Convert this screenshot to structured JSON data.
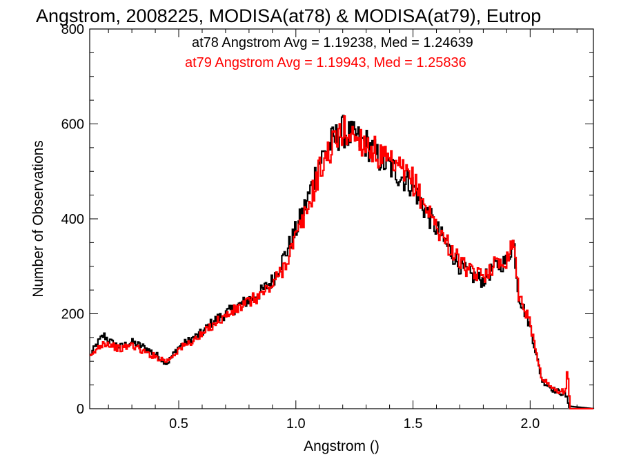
{
  "chart_data": {
    "type": "line",
    "title": "Angstrom, 2008225, MODISA(at78) & MODISA(at79), Eutrop",
    "xlabel": "Angstrom ()",
    "ylabel": "Number of Observations",
    "xlim": [
      0.12,
      2.27
    ],
    "ylim": [
      0,
      800
    ],
    "x_ticks": [
      0.5,
      1.0,
      1.5,
      2.0
    ],
    "x_tick_labels": [
      "0.5",
      "1.0",
      "1.5",
      "2.0"
    ],
    "y_ticks": [
      0,
      200,
      400,
      600,
      800
    ],
    "y_tick_labels": [
      "0",
      "200",
      "400",
      "600",
      "800"
    ],
    "grid": false,
    "legend": "top",
    "annotations": [
      {
        "text": "at78 Angstrom Avg = 1.19238, Med = 1.24639",
        "color": "#000000"
      },
      {
        "text": "at79 Angstrom Avg = 1.19943, Med = 1.25836",
        "color": "#ff0000"
      }
    ],
    "series": [
      {
        "color": "#000000",
        "x": [
          0.12,
          0.15,
          0.18,
          0.21,
          0.25,
          0.3,
          0.35,
          0.4,
          0.45,
          0.5,
          0.55,
          0.6,
          0.65,
          0.7,
          0.75,
          0.8,
          0.85,
          0.9,
          0.95,
          1.0,
          1.05,
          1.1,
          1.15,
          1.2,
          1.25,
          1.3,
          1.35,
          1.4,
          1.45,
          1.5,
          1.55,
          1.6,
          1.65,
          1.7,
          1.75,
          1.8,
          1.85,
          1.9,
          1.93,
          1.95,
          2.0,
          2.05,
          2.1,
          2.15,
          2.17,
          2.27
        ],
        "y": [
          110,
          135,
          155,
          140,
          130,
          140,
          130,
          115,
          95,
          130,
          145,
          160,
          185,
          200,
          215,
          230,
          245,
          270,
          320,
          375,
          440,
          520,
          560,
          585,
          570,
          560,
          530,
          510,
          490,
          470,
          420,
          380,
          340,
          300,
          280,
          270,
          300,
          310,
          355,
          240,
          175,
          60,
          40,
          30,
          5,
          0
        ]
      },
      {
        "color": "#ff0000",
        "x": [
          0.12,
          0.15,
          0.18,
          0.21,
          0.25,
          0.3,
          0.35,
          0.4,
          0.45,
          0.5,
          0.55,
          0.6,
          0.65,
          0.7,
          0.75,
          0.8,
          0.85,
          0.9,
          0.95,
          1.0,
          1.05,
          1.1,
          1.15,
          1.2,
          1.25,
          1.3,
          1.35,
          1.4,
          1.45,
          1.5,
          1.55,
          1.6,
          1.65,
          1.7,
          1.75,
          1.8,
          1.85,
          1.9,
          1.93,
          1.95,
          2.0,
          2.05,
          2.1,
          2.15,
          2.16,
          2.17,
          2.27
        ],
        "y": [
          105,
          125,
          140,
          135,
          125,
          135,
          120,
          110,
          100,
          125,
          140,
          155,
          180,
          195,
          210,
          225,
          240,
          260,
          300,
          360,
          420,
          500,
          550,
          585,
          575,
          560,
          535,
          515,
          500,
          480,
          430,
          385,
          345,
          310,
          285,
          280,
          305,
          315,
          360,
          245,
          180,
          65,
          40,
          35,
          85,
          0,
          0
        ]
      }
    ]
  }
}
